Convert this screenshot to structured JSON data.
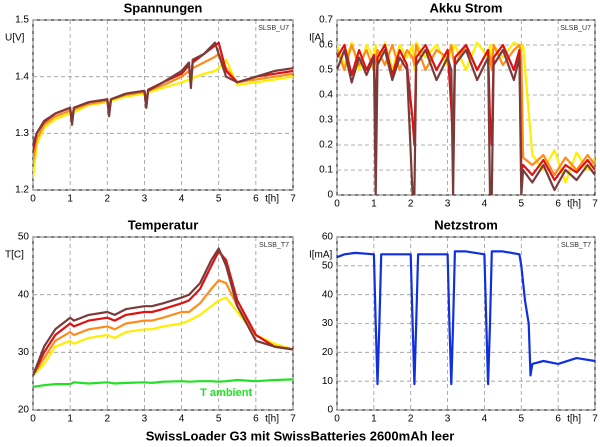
{
  "caption": "SwissLoader G3 mit SwissBatteries 2600mAh leer",
  "chart_data": [
    {
      "type": "line",
      "title": "Spannungen",
      "ylabel": "U[V]",
      "xlabel": "t[h]",
      "note": "SLSB_U7",
      "xlim": [
        0,
        7
      ],
      "xticks": [
        0,
        1,
        2,
        3,
        4,
        5,
        6,
        7
      ],
      "ylim": [
        1.2,
        1.5
      ],
      "yticks": [
        1.2,
        1.3,
        1.4,
        1.5
      ],
      "grid": true,
      "x": [
        0,
        0.1,
        0.3,
        0.6,
        1,
        1.05,
        1.1,
        1.5,
        2,
        2.05,
        2.1,
        2.5,
        3,
        3.05,
        3.1,
        3.5,
        4,
        4.2,
        4.25,
        4.3,
        4.6,
        4.9,
        5.0,
        5.2,
        5.5,
        6,
        6.5,
        7
      ],
      "series": [
        {
          "color": "#ffee00",
          "values": [
            1.22,
            1.28,
            1.31,
            1.325,
            1.335,
            1.33,
            1.337,
            1.35,
            1.355,
            1.35,
            1.357,
            1.365,
            1.37,
            1.365,
            1.372,
            1.38,
            1.39,
            1.395,
            1.39,
            1.398,
            1.405,
            1.41,
            1.415,
            1.43,
            1.385,
            1.39,
            1.395,
            1.4
          ]
        },
        {
          "color": "#ff8c1a",
          "values": [
            1.25,
            1.29,
            1.315,
            1.33,
            1.34,
            1.33,
            1.342,
            1.352,
            1.358,
            1.345,
            1.36,
            1.368,
            1.373,
            1.36,
            1.375,
            1.385,
            1.4,
            1.41,
            1.4,
            1.415,
            1.425,
            1.435,
            1.44,
            1.415,
            1.39,
            1.395,
            1.4,
            1.405
          ]
        },
        {
          "color": "#e01010",
          "values": [
            1.27,
            1.3,
            1.32,
            1.335,
            1.345,
            1.32,
            1.345,
            1.355,
            1.36,
            1.335,
            1.36,
            1.37,
            1.375,
            1.35,
            1.377,
            1.39,
            1.405,
            1.42,
            1.39,
            1.425,
            1.44,
            1.455,
            1.46,
            1.41,
            1.39,
            1.4,
            1.405,
            1.41
          ]
        },
        {
          "color": "#7a3b3b",
          "values": [
            1.28,
            1.3,
            1.322,
            1.335,
            1.345,
            1.315,
            1.345,
            1.355,
            1.36,
            1.33,
            1.36,
            1.37,
            1.375,
            1.345,
            1.375,
            1.39,
            1.41,
            1.425,
            1.38,
            1.43,
            1.44,
            1.46,
            1.44,
            1.4,
            1.39,
            1.4,
            1.41,
            1.415
          ]
        }
      ]
    },
    {
      "type": "line",
      "title": "Akku Strom",
      "ylabel": "I[A]",
      "xlabel": "t[h]",
      "note": "SLSB_U7",
      "xlim": [
        0,
        7
      ],
      "xticks": [
        0,
        1,
        2,
        3,
        4,
        5,
        6,
        7
      ],
      "ylim": [
        0,
        0.7
      ],
      "yticks": [
        0,
        0.1,
        0.2,
        0.3,
        0.4,
        0.5,
        0.6,
        0.7
      ],
      "grid": true,
      "x": [
        0,
        0.2,
        0.4,
        0.6,
        0.8,
        1.0,
        1.05,
        1.1,
        1.3,
        1.5,
        1.7,
        1.9,
        2.05,
        2.1,
        2.15,
        2.4,
        2.7,
        3.0,
        3.1,
        3.15,
        3.2,
        3.5,
        3.8,
        4.1,
        4.15,
        4.2,
        4.25,
        4.5,
        4.8,
        4.95,
        5.0,
        5.05,
        5.3,
        5.6,
        5.9,
        6.2,
        6.5,
        6.8,
        7
      ],
      "series": [
        {
          "color": "#ffee00",
          "values": [
            0.6,
            0.52,
            0.61,
            0.5,
            0.6,
            0.55,
            0.6,
            0.52,
            0.61,
            0.5,
            0.6,
            0.55,
            0.6,
            0.5,
            0.61,
            0.55,
            0.6,
            0.52,
            0.6,
            0.58,
            0.6,
            0.5,
            0.61,
            0.55,
            0.6,
            0.52,
            0.6,
            0.55,
            0.61,
            0.6,
            0.58,
            0.6,
            0.16,
            0.1,
            0.18,
            0.05,
            0.17,
            0.1,
            0.15
          ]
        },
        {
          "color": "#ff8c1a",
          "values": [
            0.58,
            0.5,
            0.6,
            0.52,
            0.58,
            0.5,
            0.55,
            0.58,
            0.52,
            0.6,
            0.5,
            0.58,
            0.55,
            0.52,
            0.6,
            0.5,
            0.58,
            0.55,
            0.6,
            0.55,
            0.52,
            0.6,
            0.5,
            0.58,
            0.55,
            0.5,
            0.6,
            0.52,
            0.58,
            0.6,
            0.55,
            0.15,
            0.12,
            0.16,
            0.08,
            0.15,
            0.1,
            0.16,
            0.12
          ]
        },
        {
          "color": "#e01010",
          "values": [
            0.55,
            0.6,
            0.48,
            0.58,
            0.5,
            0.56,
            0.3,
            0.55,
            0.6,
            0.48,
            0.58,
            0.52,
            0.3,
            0.2,
            0.55,
            0.6,
            0.5,
            0.58,
            0.35,
            0.2,
            0.55,
            0.6,
            0.5,
            0.58,
            0.3,
            0.2,
            0.55,
            0.6,
            0.5,
            0.58,
            0.1,
            0.12,
            0.08,
            0.14,
            0.06,
            0.12,
            0.09,
            0.14,
            0.1
          ]
        },
        {
          "color": "#7a3b3b",
          "values": [
            0.5,
            0.58,
            0.45,
            0.55,
            0.48,
            0.55,
            0.0,
            0.52,
            0.58,
            0.46,
            0.55,
            0.5,
            0.0,
            0.0,
            0.52,
            0.58,
            0.46,
            0.55,
            0.5,
            0.0,
            0.52,
            0.58,
            0.46,
            0.55,
            0.0,
            0.0,
            0.52,
            0.58,
            0.46,
            0.55,
            0.0,
            0.1,
            0.05,
            0.12,
            0.02,
            0.1,
            0.06,
            0.12,
            0.08
          ]
        }
      ]
    },
    {
      "type": "line",
      "title": "Temperatur",
      "ylabel": "T[C]",
      "xlabel": "t[h]",
      "note": "SLSB_T7",
      "xlim": [
        0,
        7
      ],
      "xticks": [
        0,
        1,
        2,
        3,
        4,
        5,
        6,
        7
      ],
      "ylim": [
        20,
        50
      ],
      "yticks": [
        20,
        30,
        40,
        50
      ],
      "grid": true,
      "x": [
        0,
        0.3,
        0.6,
        1,
        1.1,
        1.5,
        2,
        2.2,
        2.5,
        3,
        3.2,
        3.5,
        4,
        4.2,
        4.5,
        4.8,
        5,
        5.2,
        5.5,
        6,
        6.5,
        7
      ],
      "series": [
        {
          "color": "#ffee00",
          "values": [
            26,
            28,
            31,
            32,
            31.5,
            32.5,
            33,
            32.5,
            33.5,
            34,
            34,
            34.5,
            35,
            35.5,
            36.5,
            38,
            39,
            39.5,
            37,
            33,
            31.5,
            30.5
          ]
        },
        {
          "color": "#ff8c1a",
          "values": [
            26,
            29,
            32,
            33.5,
            33,
            34,
            34.5,
            34,
            35,
            35.5,
            35.5,
            36,
            37,
            37,
            38.5,
            41,
            42.5,
            42,
            38,
            33,
            31,
            30.5
          ]
        },
        {
          "color": "#e01010",
          "values": [
            26,
            30,
            33,
            35,
            34.5,
            35.5,
            36,
            35.5,
            36.5,
            37,
            37,
            37.5,
            38.5,
            39,
            41,
            45,
            47.5,
            46,
            39,
            33,
            31,
            30.5
          ]
        },
        {
          "color": "#7a3b3b",
          "values": [
            26,
            31,
            34,
            36,
            35.5,
            36.5,
            37,
            36.5,
            37.5,
            38,
            38,
            38.5,
            39.5,
            40,
            42,
            46,
            48,
            45,
            38,
            32,
            31,
            30.5
          ]
        },
        {
          "name": "T ambient",
          "color": "#22e022",
          "values": [
            24,
            24.3,
            24.5,
            24.5,
            24.8,
            24.6,
            24.8,
            24.6,
            24.7,
            24.8,
            24.7,
            24.9,
            25,
            24.9,
            25,
            25,
            24.9,
            25,
            25.2,
            25,
            25.2,
            25.3
          ]
        }
      ]
    },
    {
      "type": "line",
      "title": "Netzstrom",
      "ylabel": "I[mA]",
      "xlabel": "t[h]",
      "note": "SLSB_T7",
      "xlim": [
        0,
        7
      ],
      "xticks": [
        0,
        1,
        2,
        3,
        4,
        5,
        6,
        7
      ],
      "ylim": [
        0,
        60
      ],
      "yticks": [
        0,
        10,
        20,
        30,
        40,
        50,
        60
      ],
      "grid": true,
      "x": [
        0,
        0.2,
        0.5,
        1.0,
        1.05,
        1.1,
        1.15,
        1.2,
        1.5,
        2.0,
        2.05,
        2.1,
        2.15,
        2.2,
        2.5,
        3.0,
        3.05,
        3.1,
        3.15,
        3.2,
        3.5,
        4.0,
        4.05,
        4.1,
        4.15,
        4.2,
        4.5,
        4.95,
        5.0,
        5.1,
        5.2,
        5.25,
        5.3,
        5.6,
        6,
        6.5,
        7
      ],
      "series": [
        {
          "color": "#1030e0",
          "values": [
            53,
            54,
            54.5,
            54,
            30,
            9,
            30,
            54,
            54,
            54,
            30,
            9,
            30,
            54,
            54,
            54,
            30,
            9,
            30,
            55,
            55,
            54,
            30,
            9,
            30,
            55,
            55,
            54,
            50,
            38,
            30,
            12,
            16,
            17,
            16,
            18,
            17
          ]
        }
      ]
    }
  ]
}
